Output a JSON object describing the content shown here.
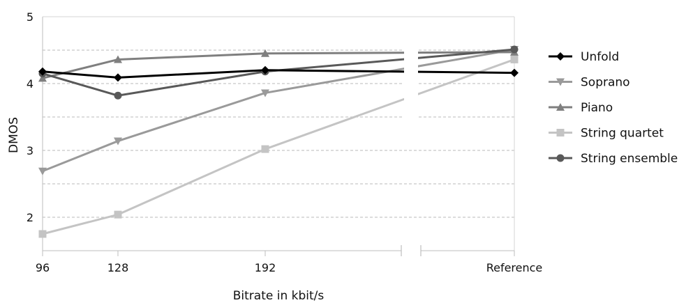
{
  "chart_data": {
    "type": "line",
    "xlabel": "Bitrate in kbit/s",
    "ylabel": "DMOS",
    "categories": [
      "96",
      "128",
      "192",
      "Reference"
    ],
    "ylim": [
      1.5,
      5
    ],
    "yticks": [
      "2",
      "3",
      "4",
      "5"
    ],
    "grid": "horizontal dashed",
    "x_axis_break": "between 192 and Reference",
    "legend_position": "right",
    "series": [
      {
        "name": "Unfold",
        "marker": "diamond",
        "color": "#000000",
        "values": [
          4.18,
          4.09,
          4.2,
          4.16
        ]
      },
      {
        "name": "Soprano",
        "marker": "triangle-down",
        "color": "#9a9a9a",
        "values": [
          2.69,
          3.14,
          3.86,
          4.51
        ]
      },
      {
        "name": "Piano",
        "marker": "triangle-up",
        "color": "#7f7f7f",
        "values": [
          4.08,
          4.36,
          4.45,
          4.47
        ]
      },
      {
        "name": "String quartet",
        "marker": "square",
        "color": "#c4c4c4",
        "values": [
          1.75,
          2.04,
          3.02,
          4.36
        ]
      },
      {
        "name": "String ensemble",
        "marker": "circle",
        "color": "#595959",
        "values": [
          4.15,
          3.82,
          4.18,
          4.51
        ]
      }
    ]
  }
}
